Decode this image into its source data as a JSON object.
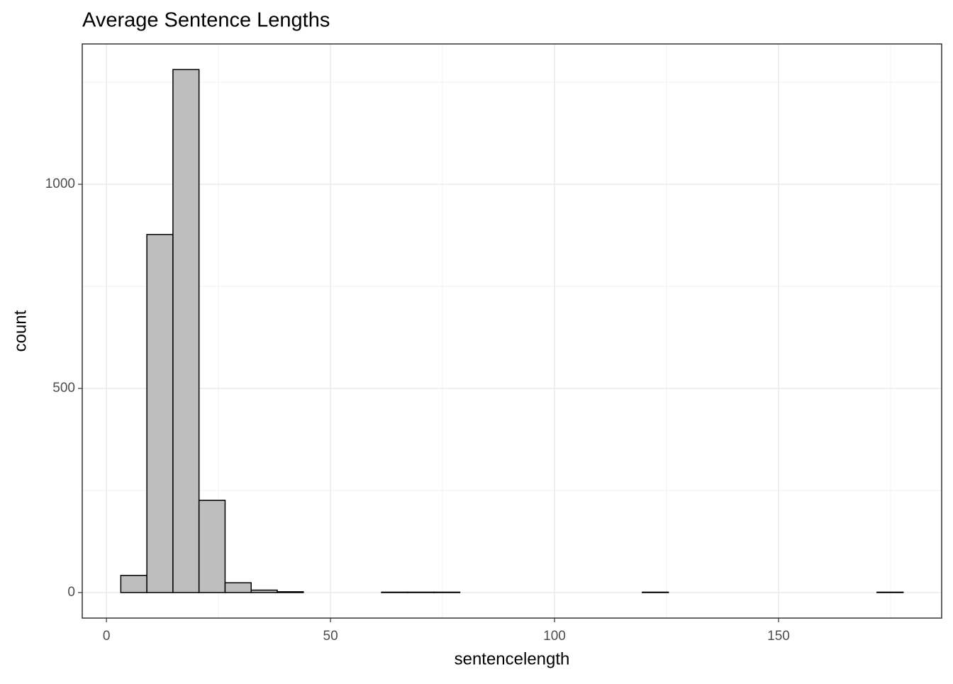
{
  "chart_data": {
    "type": "histogram",
    "title": "Average Sentence Lengths",
    "x_label": "sentencelength",
    "y_label": "count",
    "bins": [
      3.2,
      9.02,
      14.84,
      20.66,
      26.48,
      32.3,
      38.12,
      43.94,
      49.76,
      55.58,
      61.4,
      67.22,
      73.04,
      78.86,
      84.68,
      90.5,
      96.32,
      102.14,
      107.96,
      113.78,
      119.6,
      125.42,
      131.24,
      137.06,
      142.88,
      148.7,
      154.52,
      160.34,
      166.16,
      171.98,
      177.8
    ],
    "values": [
      42,
      877,
      1281,
      226,
      24,
      6,
      2,
      0,
      0,
      0,
      1,
      1,
      1,
      0,
      0,
      0,
      0,
      0,
      0,
      0,
      1,
      0,
      0,
      0,
      0,
      0,
      0,
      0,
      0,
      1
    ],
    "color": "#bebebe",
    "edgecolor": "#000000",
    "xlim": [
      -5.4,
      186.4
    ],
    "ylim": [
      -62.5,
      1343.7
    ],
    "xticks": [
      0,
      50,
      100,
      150
    ],
    "yticks": [
      0,
      500,
      1000
    ],
    "xminor": [
      25,
      75,
      125,
      175
    ],
    "yminor": [
      250,
      750,
      1250
    ],
    "grid": true
  }
}
